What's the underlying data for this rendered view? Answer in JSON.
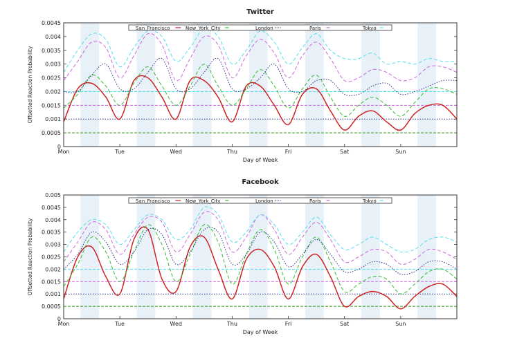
{
  "chart_data": [
    {
      "type": "line",
      "title": "Twitter",
      "xlabel": "Day of Week",
      "ylabel": "Offsetted Reaction Probability",
      "x_ticks": [
        "Mon",
        "Tue",
        "Wed",
        "Thu",
        "Fri",
        "Sat",
        "Sun"
      ],
      "xlim": [
        0,
        7
      ],
      "ylim": [
        0,
        0.0045
      ],
      "y_ticks": [
        "0",
        "0.0005",
        "0.001",
        "0.0015",
        "0.002",
        "0.0025",
        "0.003",
        "0.0035",
        "0.004",
        "0.0045"
      ],
      "grid": false,
      "legend": "top",
      "shaded_day_bands": true,
      "series": [
        {
          "name": "San_Francisco",
          "color": "#cc2222",
          "style": "solid",
          "baseline": 0.0005,
          "x": [
            0,
            0.25,
            0.5,
            0.75,
            1,
            1.25,
            1.5,
            1.75,
            2,
            2.25,
            2.5,
            2.75,
            3,
            3.25,
            3.5,
            3.75,
            4,
            4.25,
            4.5,
            4.75,
            5,
            5.25,
            5.5,
            5.75,
            6,
            6.25,
            6.5,
            6.75,
            7
          ],
          "values": [
            0.0009,
            0.0021,
            0.0023,
            0.0018,
            0.001,
            0.0024,
            0.0025,
            0.0018,
            0.001,
            0.0024,
            0.0024,
            0.0018,
            0.0009,
            0.0022,
            0.0022,
            0.0015,
            0.0008,
            0.0019,
            0.0021,
            0.0013,
            0.0006,
            0.0011,
            0.0013,
            0.0009,
            0.0006,
            0.0012,
            0.0015,
            0.0015,
            0.001
          ]
        },
        {
          "name": "New_York_City",
          "color": "#33bb33",
          "style": "dashed",
          "baseline": 0.0005,
          "x": [
            0,
            0.25,
            0.5,
            0.75,
            1,
            1.25,
            1.5,
            1.75,
            2,
            2.25,
            2.5,
            2.75,
            3,
            3.25,
            3.5,
            3.75,
            4,
            4.25,
            4.5,
            4.75,
            5,
            5.25,
            5.5,
            5.75,
            6,
            6.25,
            6.5,
            6.75,
            7
          ],
          "values": [
            0.0014,
            0.0019,
            0.0026,
            0.0022,
            0.0015,
            0.0023,
            0.0029,
            0.0022,
            0.0015,
            0.0022,
            0.003,
            0.0022,
            0.0015,
            0.0021,
            0.0028,
            0.0022,
            0.0014,
            0.0021,
            0.0026,
            0.0018,
            0.0011,
            0.0015,
            0.0018,
            0.0015,
            0.0011,
            0.0016,
            0.0021,
            0.0021,
            0.0019
          ]
        },
        {
          "name": "London",
          "color": "#223388",
          "style": "dotted",
          "baseline": 0.001,
          "x": [
            0,
            0.25,
            0.5,
            0.75,
            1,
            1.25,
            1.5,
            1.75,
            2,
            2.25,
            2.5,
            2.75,
            3,
            3.25,
            3.5,
            3.75,
            4,
            4.25,
            4.5,
            4.75,
            5,
            5.25,
            5.5,
            5.75,
            6,
            6.25,
            6.5,
            6.75,
            7
          ],
          "values": [
            0.002,
            0.002,
            0.0026,
            0.003,
            0.0021,
            0.0021,
            0.0027,
            0.0032,
            0.0021,
            0.0021,
            0.0027,
            0.0032,
            0.0021,
            0.0021,
            0.0025,
            0.003,
            0.0021,
            0.002,
            0.0024,
            0.0024,
            0.0019,
            0.0019,
            0.0022,
            0.0023,
            0.0019,
            0.002,
            0.0022,
            0.0024,
            0.0024
          ]
        },
        {
          "name": "Paris",
          "color": "#cc66dd",
          "style": "dashed",
          "baseline": 0.0015,
          "x": [
            0,
            0.25,
            0.5,
            0.75,
            1,
            1.25,
            1.5,
            1.75,
            2,
            2.25,
            2.5,
            2.75,
            3,
            3.25,
            3.5,
            3.75,
            4,
            4.25,
            4.5,
            4.75,
            5,
            5.25,
            5.5,
            5.75,
            6,
            6.25,
            6.5,
            6.75,
            7
          ],
          "values": [
            0.0024,
            0.0031,
            0.0038,
            0.0036,
            0.0025,
            0.0033,
            0.0041,
            0.0037,
            0.0024,
            0.0032,
            0.004,
            0.0037,
            0.0025,
            0.0033,
            0.0039,
            0.0034,
            0.0025,
            0.0033,
            0.0038,
            0.0032,
            0.0024,
            0.0025,
            0.0028,
            0.0027,
            0.0024,
            0.0025,
            0.0029,
            0.0029,
            0.0027
          ]
        },
        {
          "name": "Tokyo",
          "color": "#55ddee",
          "style": "dashed",
          "baseline": 0.002,
          "x": [
            0,
            0.25,
            0.5,
            0.75,
            1,
            1.25,
            1.5,
            1.75,
            2,
            2.25,
            2.5,
            2.75,
            3,
            3.25,
            3.5,
            3.75,
            4,
            4.25,
            4.5,
            4.75,
            5,
            5.25,
            5.5,
            5.75,
            6,
            6.25,
            6.5,
            6.75,
            7
          ],
          "values": [
            0.0027,
            0.0035,
            0.0041,
            0.0039,
            0.0029,
            0.0036,
            0.0042,
            0.004,
            0.0031,
            0.0036,
            0.0043,
            0.004,
            0.003,
            0.0035,
            0.0042,
            0.0038,
            0.003,
            0.0036,
            0.0041,
            0.0035,
            0.0032,
            0.0032,
            0.0034,
            0.003,
            0.0031,
            0.003,
            0.0032,
            0.0031,
            0.0031
          ]
        }
      ]
    },
    {
      "type": "line",
      "title": "Facebook",
      "xlabel": "Day of Week",
      "ylabel": "Offsetted Reaction Probability",
      "x_ticks": [
        "Mon",
        "Tue",
        "Wed",
        "Thu",
        "Fri",
        "Sat",
        "Sun"
      ],
      "xlim": [
        0,
        7
      ],
      "ylim": [
        0,
        0.005
      ],
      "y_ticks": [
        "0",
        "0.0005",
        "0.001",
        "0.0015",
        "0.002",
        "0.0025",
        "0.003",
        "0.0035",
        "0.004",
        "0.0045",
        "0.005"
      ],
      "grid": false,
      "legend": "top",
      "shaded_day_bands": true,
      "series": [
        {
          "name": "San_Francisco",
          "color": "#cc2222",
          "style": "solid",
          "baseline": 0.0005,
          "x": [
            0,
            0.25,
            0.5,
            0.75,
            1,
            1.25,
            1.5,
            1.75,
            2,
            2.25,
            2.5,
            2.75,
            3,
            3.25,
            3.5,
            3.75,
            4,
            4.25,
            4.5,
            4.75,
            5,
            5.25,
            5.5,
            5.75,
            6,
            6.25,
            6.5,
            6.75,
            7
          ],
          "values": [
            0.0008,
            0.0025,
            0.0029,
            0.0017,
            0.001,
            0.0032,
            0.0036,
            0.0016,
            0.0011,
            0.0029,
            0.0033,
            0.002,
            0.0008,
            0.0024,
            0.0028,
            0.0021,
            0.0008,
            0.0021,
            0.0026,
            0.0017,
            0.0005,
            0.0009,
            0.0011,
            0.0009,
            0.0004,
            0.0009,
            0.0013,
            0.0014,
            0.0009
          ]
        },
        {
          "name": "New_York_City",
          "color": "#33bb33",
          "style": "dashed",
          "baseline": 0.0005,
          "x": [
            0,
            0.25,
            0.5,
            0.75,
            1,
            1.25,
            1.5,
            1.75,
            2,
            2.25,
            2.5,
            2.75,
            3,
            3.25,
            3.5,
            3.75,
            4,
            4.25,
            4.5,
            4.75,
            5,
            5.25,
            5.5,
            5.75,
            6,
            6.25,
            6.5,
            6.75,
            7
          ],
          "values": [
            0.0013,
            0.0022,
            0.0033,
            0.0027,
            0.0015,
            0.0027,
            0.0038,
            0.003,
            0.0015,
            0.0026,
            0.0038,
            0.0031,
            0.0014,
            0.0026,
            0.0036,
            0.0028,
            0.0014,
            0.0025,
            0.0033,
            0.0023,
            0.0011,
            0.0014,
            0.0017,
            0.0016,
            0.001,
            0.0014,
            0.0019,
            0.002,
            0.0016
          ]
        },
        {
          "name": "London",
          "color": "#223388",
          "style": "dotted",
          "baseline": 0.001,
          "x": [
            0,
            0.25,
            0.5,
            0.75,
            1,
            1.25,
            1.5,
            1.75,
            2,
            2.25,
            2.5,
            2.75,
            3,
            3.25,
            3.5,
            3.75,
            4,
            4.25,
            4.5,
            4.75,
            5,
            5.25,
            5.5,
            5.75,
            6,
            6.25,
            6.5,
            6.75,
            7
          ],
          "values": [
            0.002,
            0.0026,
            0.0035,
            0.0031,
            0.0022,
            0.0027,
            0.0036,
            0.0034,
            0.0022,
            0.0027,
            0.0036,
            0.0035,
            0.0022,
            0.0026,
            0.0035,
            0.0031,
            0.0021,
            0.0026,
            0.0032,
            0.0026,
            0.0019,
            0.002,
            0.0023,
            0.0022,
            0.0018,
            0.0019,
            0.0023,
            0.0023,
            0.002
          ]
        },
        {
          "name": "Paris",
          "color": "#cc66dd",
          "style": "dashed",
          "baseline": 0.0015,
          "x": [
            0,
            0.25,
            0.5,
            0.75,
            1,
            1.25,
            1.5,
            1.75,
            2,
            2.25,
            2.5,
            2.75,
            3,
            3.25,
            3.5,
            3.75,
            4,
            4.25,
            4.5,
            4.75,
            5,
            5.25,
            5.5,
            5.75,
            6,
            6.25,
            6.5,
            6.75,
            7
          ],
          "values": [
            0.0023,
            0.0031,
            0.0039,
            0.0036,
            0.0026,
            0.0034,
            0.0041,
            0.0039,
            0.0027,
            0.0034,
            0.0043,
            0.004,
            0.0027,
            0.0033,
            0.0042,
            0.0036,
            0.0026,
            0.0033,
            0.0039,
            0.0032,
            0.0023,
            0.0025,
            0.0028,
            0.0027,
            0.0022,
            0.0024,
            0.0028,
            0.0027,
            0.0024
          ]
        },
        {
          "name": "Tokyo",
          "color": "#55ddee",
          "style": "dashed",
          "baseline": 0.002,
          "x": [
            0,
            0.25,
            0.5,
            0.75,
            1,
            1.25,
            1.5,
            1.75,
            2,
            2.25,
            2.5,
            2.75,
            3,
            3.25,
            3.5,
            3.75,
            4,
            4.25,
            4.5,
            4.75,
            5,
            5.25,
            5.5,
            5.75,
            6,
            6.25,
            6.5,
            6.75,
            7
          ],
          "values": [
            0.0027,
            0.0035,
            0.004,
            0.0038,
            0.003,
            0.0036,
            0.0042,
            0.004,
            0.0032,
            0.0036,
            0.0045,
            0.0042,
            0.0031,
            0.0035,
            0.0042,
            0.0038,
            0.003,
            0.0035,
            0.0041,
            0.0034,
            0.0028,
            0.003,
            0.0033,
            0.003,
            0.0027,
            0.0028,
            0.0032,
            0.0033,
            0.0031
          ]
        }
      ]
    }
  ]
}
